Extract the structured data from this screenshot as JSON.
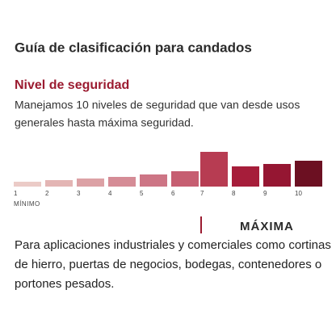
{
  "header": {
    "title": "Guía de clasificación para candados"
  },
  "section": {
    "heading": "Nivel de seguridad",
    "description": [
      "Manejamos 10 niveles de seguridad que van desde usos",
      "generales hasta máxima seguridad."
    ]
  },
  "scale": {
    "levels": [
      "1",
      "2",
      "3",
      "4",
      "5",
      "6",
      "7",
      "8",
      "9",
      "10"
    ],
    "min_label": "MÍNIMO",
    "max_label": "MÁXIMA"
  },
  "body": [
    "Para aplicaciones industriales y comerciales como cortinas",
    "de hierro, puertas de negocios, bodegas, contenedores o",
    "portones pesados."
  ]
}
